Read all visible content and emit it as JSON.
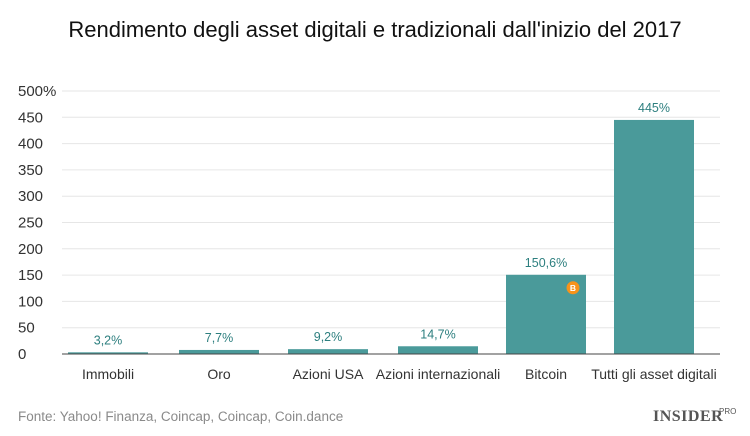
{
  "chart_data": {
    "type": "bar",
    "title": "Rendimento degli asset digitali e tradizionali dall'inizio del 2017",
    "categories": [
      "Immobili",
      "Oro",
      "Azioni USA",
      "Azioni internazionali",
      "Bitcoin",
      "Tutti gli asset digitali"
    ],
    "values": [
      3.2,
      7.7,
      9.2,
      14.7,
      150.6,
      445
    ],
    "value_labels": [
      "3,2%",
      "7,7%",
      "9,2%",
      "14,7%",
      "150,6%",
      "445%"
    ],
    "ylim": [
      0,
      500
    ],
    "yticks": [
      "0",
      "50",
      "100",
      "150",
      "200",
      "250",
      "300",
      "350",
      "400",
      "450",
      "500%"
    ],
    "grid": true,
    "bar_color": "#4a9a9a",
    "label_color": "#2d7f7f",
    "xlabel": "",
    "ylabel": ""
  },
  "bitcoin_icon": {
    "name": "bitcoin-icon",
    "glyph": "B",
    "color": "#f7931a"
  },
  "source": "Fonte: Yahoo! Finanza, Coincap, Coincap, Coin.dance",
  "logo": {
    "main": "INSIDER",
    "sub": "PRO"
  }
}
